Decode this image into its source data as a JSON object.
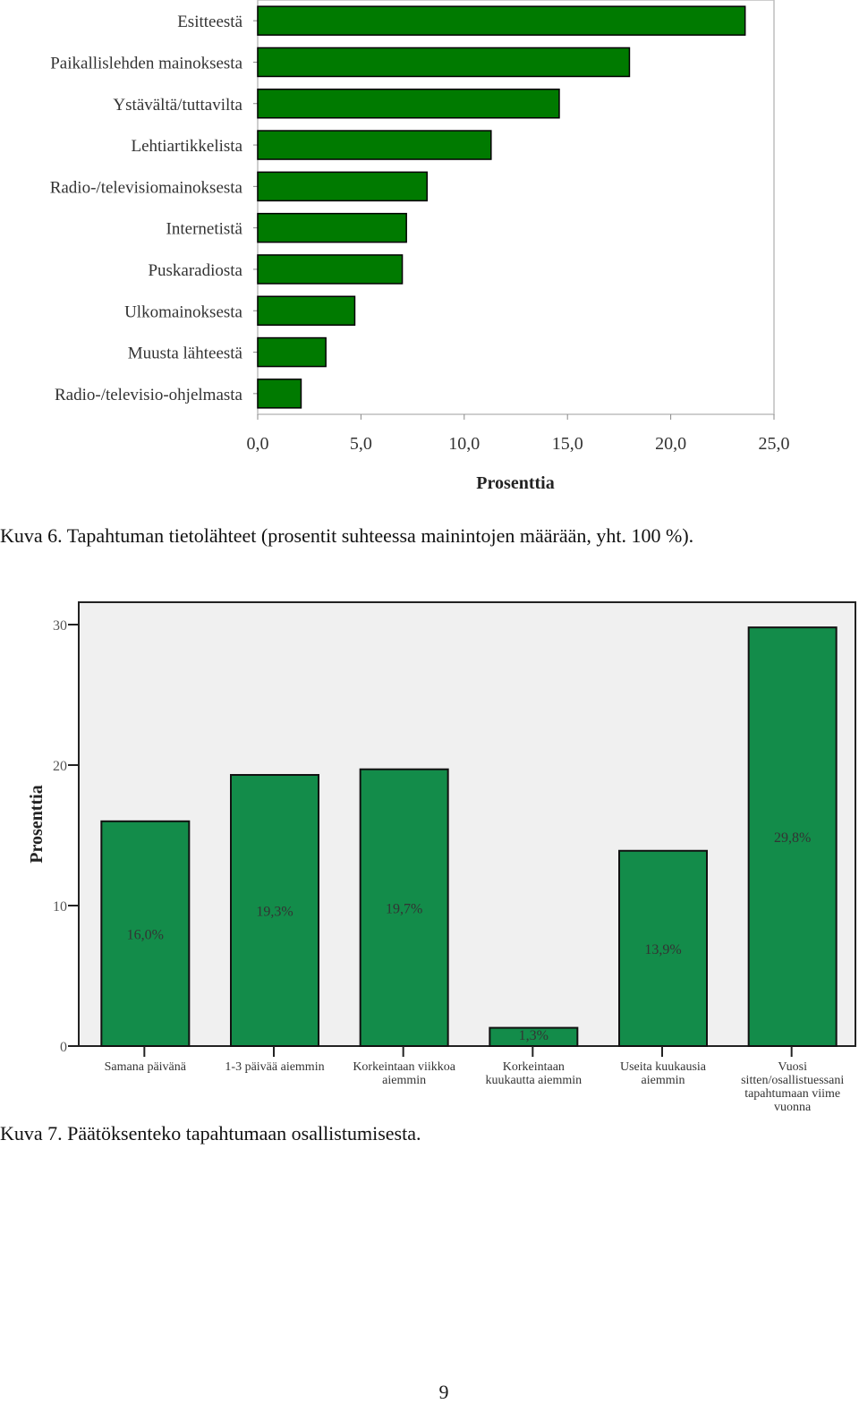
{
  "chart_data": [
    {
      "type": "bar",
      "orientation": "horizontal",
      "categories": [
        "Esitteestä",
        "Paikallislehden mainoksesta",
        "Ystävältä/tuttavilta",
        "Lehtiartikkelista",
        "Radio-/televisiomainoksesta",
        "Internetistä",
        "Puskaradiosta",
        "Ulkomainoksesta",
        "Muusta lähteestä",
        "Radio-/televisio-ohjelmasta"
      ],
      "values": [
        23.6,
        18.0,
        14.6,
        11.3,
        8.2,
        7.2,
        7.0,
        4.7,
        3.3,
        2.1
      ],
      "xlabel": "Prosenttia",
      "xlim": [
        0,
        25
      ],
      "ticks": [
        "0,0",
        "5,0",
        "10,0",
        "15,0",
        "20,0",
        "25,0"
      ],
      "bar_color": "#007a00",
      "grid": false
    },
    {
      "type": "bar",
      "orientation": "vertical",
      "categories": [
        "Samana päivänä",
        "1-3 päivää aiemmin",
        "Korkeintaan viikkoa aiemmin",
        "Korkeintaan kuukautta aiemmin",
        "Useita kuukausia aiemmin",
        "Vuosi sitten/osallistuessani tapahtumaan viime vuonna"
      ],
      "category_lines": [
        [
          "Samana päivänä"
        ],
        [
          "1-3 päivää aiemmin"
        ],
        [
          "Korkeintaan viikkoa",
          "aiemmin"
        ],
        [
          "Korkeintaan",
          "kuukautta aiemmin"
        ],
        [
          "Useita kuukausia",
          "aiemmin"
        ],
        [
          "Vuosi",
          "sitten/osallistuessani",
          "tapahtumaan viime",
          "vuonna"
        ]
      ],
      "values": [
        16.0,
        19.3,
        19.7,
        1.3,
        13.9,
        29.8
      ],
      "data_labels": [
        "16,0%",
        "19,3%",
        "19,7%",
        "1,3%",
        "13,9%",
        "29,8%"
      ],
      "ylabel": "Prosenttia",
      "ylim": [
        0,
        30
      ],
      "ticks": [
        "0",
        "10",
        "20",
        "30"
      ],
      "bar_color": "#138c4a",
      "plot_background": "#f0f0f0",
      "grid": false
    }
  ],
  "captions": {
    "figure6": "Kuva 6. Tapahtuman tietolähteet (prosentit suhteessa mainintojen määrään, yht. 100 %).",
    "figure7": "Kuva 7. Päätöksenteko tapahtumaan osallistumisesta."
  },
  "page_number": "9"
}
